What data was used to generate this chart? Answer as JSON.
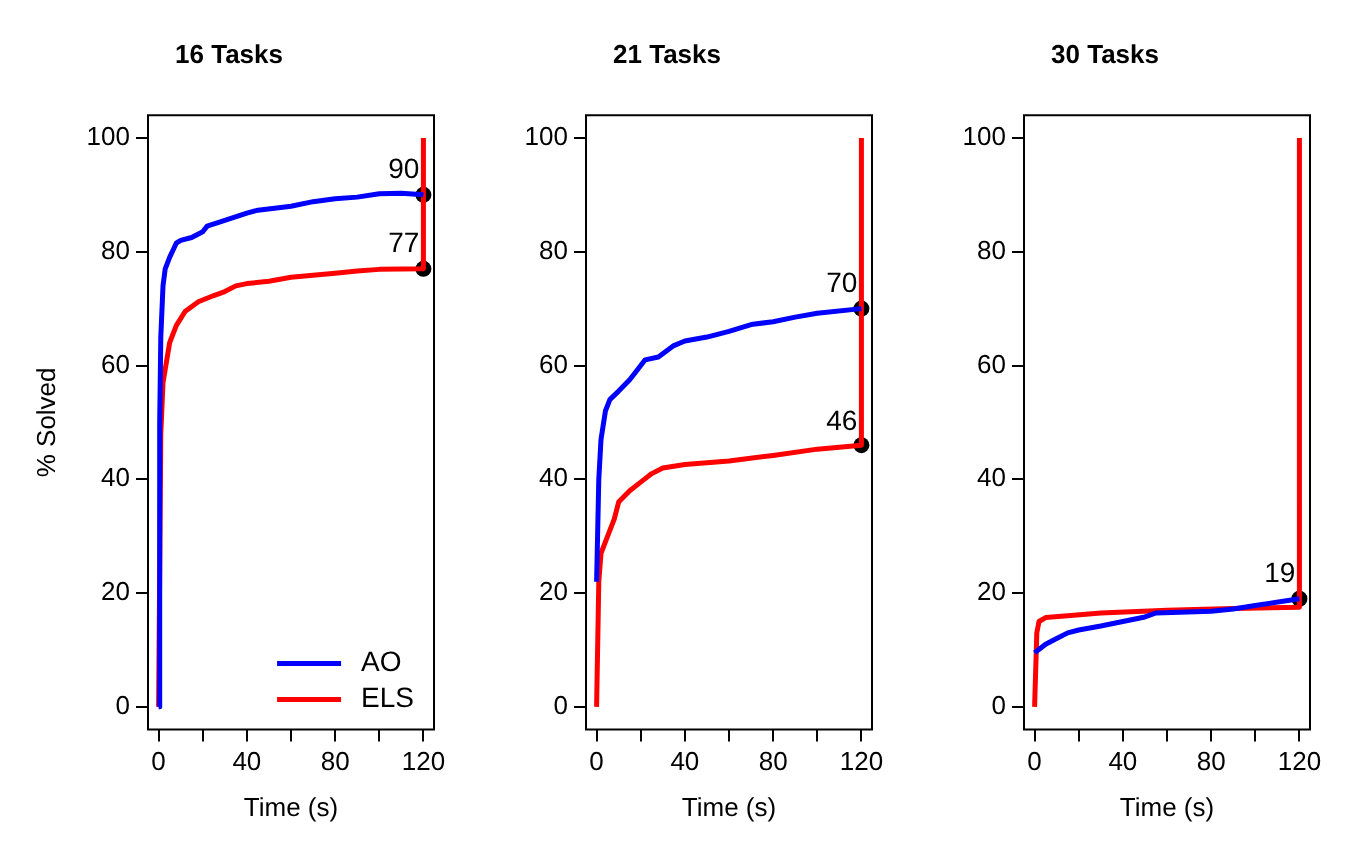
{
  "chart_data": [
    {
      "type": "line",
      "title": "16 Tasks",
      "xlabel": "Time (s)",
      "ylabel": "% Solved",
      "legend": "bottom right",
      "grid": false,
      "xlim": [
        -4.8,
        124.8
      ],
      "xticks": [
        0,
        {
          "value": 20,
          "label": null
        },
        40,
        {
          "value": 60,
          "label": null
        },
        80,
        {
          "value": 100,
          "label": null
        },
        120
      ],
      "ylim": [
        -4,
        104
      ],
      "yticks": [
        0,
        20,
        40,
        60,
        80,
        100
      ],
      "series": [
        {
          "name": "AO",
          "color": "#0000ff",
          "x": [
            0,
            0.5,
            1,
            2,
            3,
            5,
            8,
            10,
            15,
            20,
            22,
            30,
            40,
            45,
            60,
            70,
            80,
            90,
            100,
            110,
            120
          ],
          "values": [
            0,
            50,
            65,
            74,
            77,
            79,
            81.5,
            82,
            82.5,
            83.5,
            84.5,
            85.5,
            86.8,
            87.3,
            88,
            88.8,
            89.3,
            89.6,
            90.2,
            90.3,
            90
          ]
        },
        {
          "name": "ELS",
          "color": "#ff0000",
          "x": [
            0,
            1,
            2,
            5,
            8,
            12,
            18,
            25,
            30,
            35,
            40,
            50,
            60,
            80,
            90,
            100,
            120,
            120
          ],
          "values": [
            0,
            48,
            57,
            64,
            67,
            69.5,
            71.2,
            72.3,
            73,
            74,
            74.4,
            74.8,
            75.5,
            76.2,
            76.6,
            76.9,
            77,
            100
          ]
        },
        {
          "type": "scatter",
          "color": "#000000",
          "marker": "circle",
          "x": [
            120,
            120
          ],
          "values": [
            90,
            77
          ],
          "value_labels": [
            "90",
            "77"
          ]
        }
      ]
    },
    {
      "type": "line",
      "title": "21 Tasks",
      "xlabel": "Time (s)",
      "grid": false,
      "xlim": [
        -4.8,
        124.8
      ],
      "xticks": [
        0,
        {
          "value": 20,
          "label": null
        },
        40,
        {
          "value": 60,
          "label": null
        },
        80,
        {
          "value": 100,
          "label": null
        },
        120
      ],
      "ylim": [
        -4,
        104
      ],
      "yticks": [
        0,
        20,
        40,
        60,
        80,
        100
      ],
      "series": [
        {
          "color": "#0000ff",
          "x": [
            0,
            1,
            2,
            4,
            6,
            10,
            15,
            18,
            22,
            28,
            35,
            40,
            50,
            60,
            70,
            80,
            90,
            100,
            120
          ],
          "values": [
            22,
            40,
            47,
            52,
            54,
            55.5,
            57.5,
            59,
            61,
            61.5,
            63.5,
            64.3,
            65,
            66,
            67.2,
            67.7,
            68.5,
            69.2,
            70
          ]
        },
        {
          "color": "#ff0000",
          "x": [
            0,
            1,
            2,
            5,
            8,
            10,
            15,
            20,
            25,
            30,
            40,
            60,
            80,
            100,
            120,
            120
          ],
          "values": [
            0,
            22,
            27,
            30,
            33,
            36,
            38,
            39.5,
            41,
            42,
            42.6,
            43.2,
            44.2,
            45.3,
            46,
            100
          ]
        },
        {
          "type": "scatter",
          "color": "#000000",
          "marker": "circle",
          "x": [
            120,
            120
          ],
          "values": [
            70,
            46
          ],
          "value_labels": [
            "70",
            "46"
          ]
        }
      ]
    },
    {
      "type": "line",
      "title": "30 Tasks",
      "xlabel": "Time (s)",
      "grid": false,
      "xlim": [
        -4.8,
        124.8
      ],
      "xticks": [
        0,
        {
          "value": 20,
          "label": null
        },
        40,
        {
          "value": 60,
          "label": null
        },
        80,
        {
          "value": 100,
          "label": null
        },
        120
      ],
      "ylim": [
        -4,
        104
      ],
      "yticks": [
        0,
        20,
        40,
        60,
        80,
        100
      ],
      "series": [
        {
          "color": "#0000ff",
          "x": [
            0,
            5,
            10,
            15,
            20,
            30,
            40,
            50,
            55,
            80,
            90,
            100,
            120
          ],
          "values": [
            9.5,
            11,
            12,
            13,
            13.5,
            14.2,
            15,
            15.8,
            16.5,
            16.8,
            17.2,
            17.8,
            19
          ]
        },
        {
          "color": "#ff0000",
          "x": [
            0,
            1,
            2,
            5,
            15,
            30,
            60,
            90,
            120,
            120
          ],
          "values": [
            0,
            13,
            15,
            15.7,
            16,
            16.5,
            17,
            17.3,
            17.5,
            100
          ]
        },
        {
          "type": "scatter",
          "color": "#000000",
          "marker": "circle",
          "x": [
            120
          ],
          "values": [
            19
          ],
          "value_labels": [
            "19"
          ]
        }
      ]
    }
  ]
}
